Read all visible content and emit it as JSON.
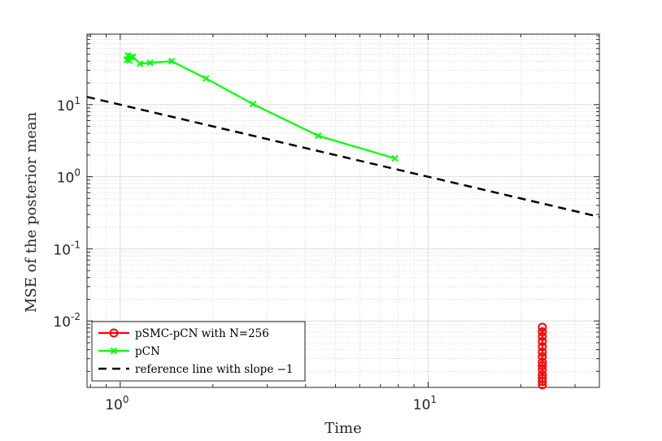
{
  "chart_data": {
    "type": "line",
    "title": "",
    "xlabel": "Time",
    "ylabel": "MSE of the posterior mean",
    "x_scale": "log",
    "y_scale": "log",
    "xlim": [
      0.78,
      36
    ],
    "ylim": [
      0.0012,
      95
    ],
    "grid": true,
    "legend_position": "bottom-left",
    "x_ticks": [
      {
        "value": 1,
        "base": "10",
        "exp": "0"
      },
      {
        "value": 10,
        "base": "10",
        "exp": "1"
      }
    ],
    "y_ticks": [
      {
        "value": 0.01,
        "base": "10",
        "exp": "-2"
      },
      {
        "value": 0.1,
        "base": "10",
        "exp": "-1"
      },
      {
        "value": 1,
        "base": "10",
        "exp": "0"
      },
      {
        "value": 10,
        "base": "10",
        "exp": "1"
      }
    ],
    "series": [
      {
        "name": "pSMC-pCN with N=256",
        "color": "#ff0000",
        "marker": "circle",
        "line": "solid",
        "x": [
          23.5,
          23.5,
          23.5,
          23.5,
          23.5,
          23.5,
          23.5,
          23.5,
          23.5,
          23.5,
          23.5,
          23.5,
          23.5,
          23.5
        ],
        "y": [
          0.0082,
          0.0071,
          0.0061,
          0.0052,
          0.0044,
          0.0037,
          0.0032,
          0.0027,
          0.0024,
          0.0021,
          0.0018,
          0.0016,
          0.00145,
          0.0013
        ]
      },
      {
        "name": "pCN",
        "color": "#00ff00",
        "marker": "x",
        "line": "solid",
        "x": [
          1.05,
          1.06,
          1.07,
          1.08,
          1.1,
          1.16,
          1.25,
          1.47,
          1.9,
          2.7,
          4.4,
          7.8
        ],
        "y": [
          42,
          48,
          41,
          45,
          46,
          37,
          38,
          40,
          23,
          10.2,
          3.7,
          1.8
        ]
      },
      {
        "name": "reference line with slope −1",
        "color": "#000000",
        "marker": "none",
        "line": "dashed",
        "x": [
          0.78,
          36
        ],
        "y": [
          12.8,
          0.278
        ]
      }
    ]
  }
}
